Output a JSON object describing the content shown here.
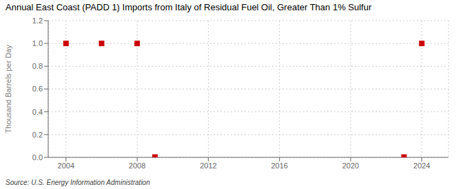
{
  "chart_data": {
    "type": "scatter",
    "title": "Annual East Coast (PADD 1) Imports from Italy of Residual Fuel Oil, Greater Than 1% Sulfur",
    "ylabel": "Thousand Barrels per Day",
    "annotations": [
      "Source: U.S. Energy Information Administration"
    ],
    "x": [
      2004,
      2006,
      2008,
      2009,
      2023,
      2024
    ],
    "values": [
      1.0,
      1.0,
      1.0,
      0.003,
      0.003,
      1.0
    ],
    "color": "#cc0000",
    "marker": "square",
    "xlim": [
      2003,
      2025.5
    ],
    "ylim": [
      0.0,
      1.2
    ],
    "xticks": [
      2004,
      2008,
      2012,
      2016,
      2020,
      2024
    ],
    "yticks": [
      {
        "value": 0.0,
        "label": "0.0"
      },
      0.2,
      0.4,
      0.6,
      0.8,
      {
        "value": 1.0,
        "label": "1.0"
      },
      1.2
    ],
    "grid": true
  }
}
